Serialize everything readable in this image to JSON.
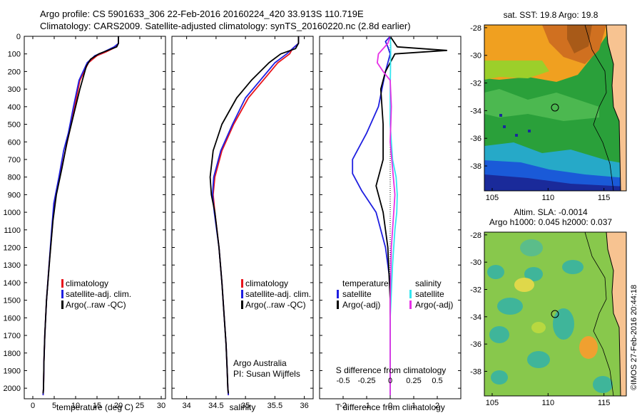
{
  "header": {
    "line1": "Argo profile: CS 5901633_306 22-Feb-2016 20160224_420 33.913S 110.719E",
    "line2": "Climatology: CARS2009. Satellite-adjusted climatology: synTS_20160220.nc (2.8d earlier)"
  },
  "depth_ticks": [
    "0",
    "100",
    "200",
    "300",
    "400",
    "500",
    "600",
    "700",
    "800",
    "900",
    "1000",
    "1100",
    "1200",
    "1300",
    "1400",
    "1500",
    "1600",
    "1700",
    "1800",
    "1900",
    "2000"
  ],
  "legend_clim": {
    "a": "climatology",
    "b": "satellite-adj. clim.",
    "c": "Argo(..raw -QC)"
  },
  "credit": {
    "line1": "Argo Australia",
    "line2": "PI: Susan Wijffels"
  },
  "diff_legend": {
    "temp_title": "temperature",
    "temp_sat": "satellite",
    "temp_argo": "Argo(-adj)",
    "sal_title": "salinity",
    "sal_sat": "satellite",
    "sal_argo": "Argo(-adj)"
  },
  "colors": {
    "red": "#e8141c",
    "blue": "#1f1fe0",
    "black": "#000000",
    "cyan": "#33e6f0",
    "magenta": "#e630e6",
    "land": "#f7c391"
  },
  "maps": {
    "sst_title": "sat. SST: 19.8 Argo: 19.8",
    "sla_title1": "Altim. SLA: -0.0014",
    "sla_title2": "Argo h1000: 0.045 h2000: 0.037",
    "lat_ticks": [
      "-28",
      "-30",
      "-32",
      "-34",
      "-36",
      "-38"
    ],
    "lon_ticks": [
      "105",
      "110",
      "115"
    ],
    "footer": "©IMOS 27-Feb-2016 20:44:18"
  },
  "chart_data": [
    {
      "type": "line",
      "title": "",
      "xlabel": "temperature (deg C)",
      "ylabel": "",
      "xlim": [
        -2,
        31
      ],
      "ylim": [
        2060,
        0
      ],
      "xticks": [
        "0",
        "5",
        "10",
        "15",
        "20",
        "25",
        "30"
      ],
      "series": [
        {
          "name": "climatology",
          "color": "red",
          "x": [
            20,
            20,
            19.5,
            17,
            15,
            13,
            11,
            9.8,
            8.5,
            7.6,
            6.3,
            5,
            4.5,
            3.8,
            3.2,
            2.8,
            2.6,
            2.5,
            2.4
          ],
          "y": [
            0,
            40,
            60,
            90,
            110,
            150,
            250,
            400,
            550,
            650,
            800,
            950,
            1100,
            1300,
            1500,
            1700,
            1850,
            2000,
            2040
          ]
        },
        {
          "name": "satellite-adj. clim.",
          "color": "blue",
          "x": [
            20,
            20,
            19,
            16.5,
            14.5,
            12.7,
            10.8,
            9.5,
            8.3,
            7.2,
            6.1,
            4.9,
            4.4,
            3.8,
            3.2,
            2.8,
            2.6,
            2.5,
            2.4
          ],
          "y": [
            0,
            40,
            60,
            90,
            110,
            150,
            250,
            400,
            550,
            650,
            800,
            950,
            1100,
            1300,
            1500,
            1700,
            1850,
            2000,
            2040
          ]
        },
        {
          "name": "Argo(..raw -QC)",
          "color": "black",
          "x": [
            20,
            20,
            19.6,
            17.5,
            15.4,
            13.5,
            12.5,
            11,
            9.5,
            8,
            6.8,
            5.5,
            4.7,
            4,
            3.2,
            2.8,
            2.6,
            2.5,
            2.4
          ],
          "y": [
            0,
            40,
            60,
            80,
            100,
            130,
            170,
            300,
            450,
            600,
            750,
            900,
            1050,
            1250,
            1500,
            1700,
            1850,
            2000,
            2030
          ]
        }
      ]
    },
    {
      "type": "line",
      "title": "",
      "xlabel": "salinity",
      "ylabel": "",
      "xlim": [
        33.75,
        36.15
      ],
      "ylim": [
        2060,
        0
      ],
      "xticks": [
        "34",
        "34.5",
        "35",
        "35.5",
        "36"
      ],
      "series": [
        {
          "name": "climatology",
          "color": "red",
          "x": [
            35.9,
            35.9,
            35.8,
            35.75,
            35.55,
            35.3,
            35.05,
            34.8,
            34.6,
            34.48,
            34.45,
            34.48,
            34.55,
            34.6,
            34.64,
            34.67,
            34.69,
            34.7,
            34.71
          ],
          "y": [
            0,
            40,
            70,
            100,
            150,
            250,
            350,
            500,
            650,
            800,
            900,
            1000,
            1200,
            1400,
            1600,
            1750,
            1900,
            2000,
            2040
          ]
        },
        {
          "name": "satellite-adj. clim.",
          "color": "blue",
          "x": [
            35.9,
            35.9,
            35.8,
            35.7,
            35.5,
            35.25,
            35.0,
            34.78,
            34.58,
            34.46,
            34.44,
            34.47,
            34.55,
            34.6,
            34.64,
            34.67,
            34.69,
            34.7,
            34.71
          ],
          "y": [
            0,
            40,
            70,
            100,
            150,
            250,
            350,
            500,
            650,
            800,
            900,
            1000,
            1200,
            1400,
            1600,
            1750,
            1900,
            2000,
            2040
          ]
        },
        {
          "name": "Argo(..raw -QC)",
          "color": "black",
          "x": [
            35.9,
            35.9,
            35.85,
            35.6,
            35.4,
            35.1,
            34.85,
            34.6,
            34.45,
            34.4,
            34.42,
            34.48,
            34.55,
            34.6,
            34.64,
            34.67,
            34.69,
            34.7,
            34.71
          ],
          "y": [
            0,
            40,
            70,
            100,
            150,
            250,
            350,
            500,
            650,
            800,
            900,
            1000,
            1200,
            1400,
            1600,
            1750,
            1900,
            2000,
            2030
          ]
        }
      ]
    },
    {
      "type": "line",
      "title": "",
      "xlabel": "T difference from climatology",
      "x2label": "S difference from climatology",
      "xlim": [
        -3,
        3
      ],
      "ylim": [
        2060,
        0
      ],
      "xticks": [
        "-2",
        "-1",
        "0",
        "1",
        "2"
      ],
      "x2ticks": [
        "-0.5",
        "-0.25",
        "0",
        "0.25",
        "0.5"
      ],
      "series": [
        {
          "name": "satellite",
          "color": "blue",
          "x": [
            0,
            -0.2,
            -0.1,
            0,
            -0.2,
            -0.5,
            -1.0,
            -1.4,
            -1.6,
            -1.6,
            -1.2,
            -0.6,
            -0.2,
            0,
            0,
            0
          ],
          "y": [
            0,
            30,
            60,
            100,
            200,
            400,
            550,
            650,
            700,
            780,
            880,
            1000,
            1200,
            1400,
            1800,
            2040
          ]
        },
        {
          "name": "Argo(-adj)",
          "color": "black",
          "x": [
            0,
            0.3,
            2.4,
            0.2,
            -0.2,
            -0.4,
            -0.3,
            -0.3,
            -0.6,
            -0.3,
            -0.1,
            0,
            0,
            0
          ],
          "y": [
            0,
            60,
            80,
            100,
            200,
            300,
            500,
            700,
            850,
            1000,
            1200,
            1500,
            1800,
            2040
          ]
        },
        {
          "name": "satellite (S)",
          "color": "cyan",
          "x": [
            0,
            0.02,
            0.02,
            0,
            0,
            0.05,
            0.1,
            0.25,
            0.3,
            0.28,
            0.2,
            0.1,
            0,
            0
          ],
          "y": [
            0,
            50,
            100,
            300,
            500,
            600,
            700,
            800,
            900,
            1000,
            1100,
            1300,
            1600,
            2040
          ]
        },
        {
          "name": "Argo(-adj) (S)",
          "color": "magenta",
          "x": [
            0,
            -0.1,
            -0.5,
            -0.55,
            -0.3,
            0,
            0.05,
            0,
            0.1,
            0.2,
            0.15,
            0.05,
            0,
            0
          ],
          "y": [
            0,
            40,
            100,
            150,
            200,
            250,
            400,
            600,
            750,
            900,
            1000,
            1200,
            1500,
            2040
          ]
        }
      ]
    }
  ]
}
